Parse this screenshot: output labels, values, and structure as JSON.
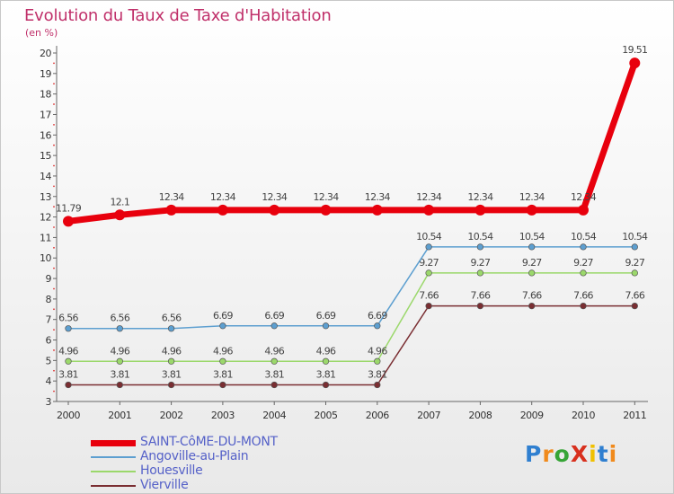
{
  "chart_data": {
    "type": "line",
    "title": "Evolution du Taux de Taxe d'Habitation",
    "unit_label": "(en %)",
    "xlabel": "",
    "ylabel": "(en %)",
    "categories": [
      "2000",
      "2001",
      "2002",
      "2003",
      "2004",
      "2005",
      "2006",
      "2007",
      "2008",
      "2009",
      "2010",
      "2011"
    ],
    "ylim": [
      3,
      20
    ],
    "yticks": [
      3,
      4,
      5,
      6,
      7,
      8,
      9,
      10,
      11,
      12,
      13,
      14,
      15,
      16,
      17,
      18,
      19,
      20
    ],
    "grid": false,
    "legend_position": "bottom-left",
    "series": [
      {
        "name": "SAINT-CôME-DU-MONT",
        "color": "#e8000d",
        "values": [
          11.79,
          12.1,
          12.34,
          12.34,
          12.34,
          12.34,
          12.34,
          12.34,
          12.34,
          12.34,
          12.34,
          19.51
        ],
        "labels": [
          "11.79",
          "12.1",
          "12.34",
          "12.34",
          "12.34",
          "12.34",
          "12.34",
          "12.34",
          "12.34",
          "12.34",
          "12.34",
          "19.51"
        ]
      },
      {
        "name": "Angoville-au-Plain",
        "color": "#5d9fd0",
        "values": [
          6.56,
          6.56,
          6.56,
          6.69,
          6.69,
          6.69,
          6.69,
          10.54,
          10.54,
          10.54,
          10.54,
          10.54
        ],
        "labels": [
          "6.56",
          "6.56",
          "6.56",
          "6.69",
          "6.69",
          "6.69",
          "6.69",
          "10.54",
          "10.54",
          "10.54",
          "10.54",
          "10.54"
        ]
      },
      {
        "name": "Houesville",
        "color": "#9bd86b",
        "values": [
          4.96,
          4.96,
          4.96,
          4.96,
          4.96,
          4.96,
          4.96,
          9.27,
          9.27,
          9.27,
          9.27,
          9.27
        ],
        "labels": [
          "4.96",
          "4.96",
          "4.96",
          "4.96",
          "4.96",
          "4.96",
          "4.96",
          "9.27",
          "9.27",
          "9.27",
          "9.27",
          "9.27"
        ]
      },
      {
        "name": "Vierville",
        "color": "#7a2e32",
        "values": [
          3.81,
          3.81,
          3.81,
          3.81,
          3.81,
          3.81,
          3.81,
          7.66,
          7.66,
          7.66,
          7.66,
          7.66
        ],
        "labels": [
          "3.81",
          "3.81",
          "3.81",
          "3.81",
          "3.81",
          "3.81",
          "3.81",
          "7.66",
          "7.66",
          "7.66",
          "7.66",
          "7.66"
        ]
      }
    ]
  },
  "logo": {
    "text": "ProXiti",
    "letters": [
      "P",
      "r",
      "o",
      "X",
      "i",
      "t",
      "i"
    ],
    "colors": [
      "#2f7fd0",
      "#f08a1c",
      "#36a536",
      "#d8301e",
      "#f0c000",
      "#2f7fd0",
      "#f08a1c"
    ]
  }
}
